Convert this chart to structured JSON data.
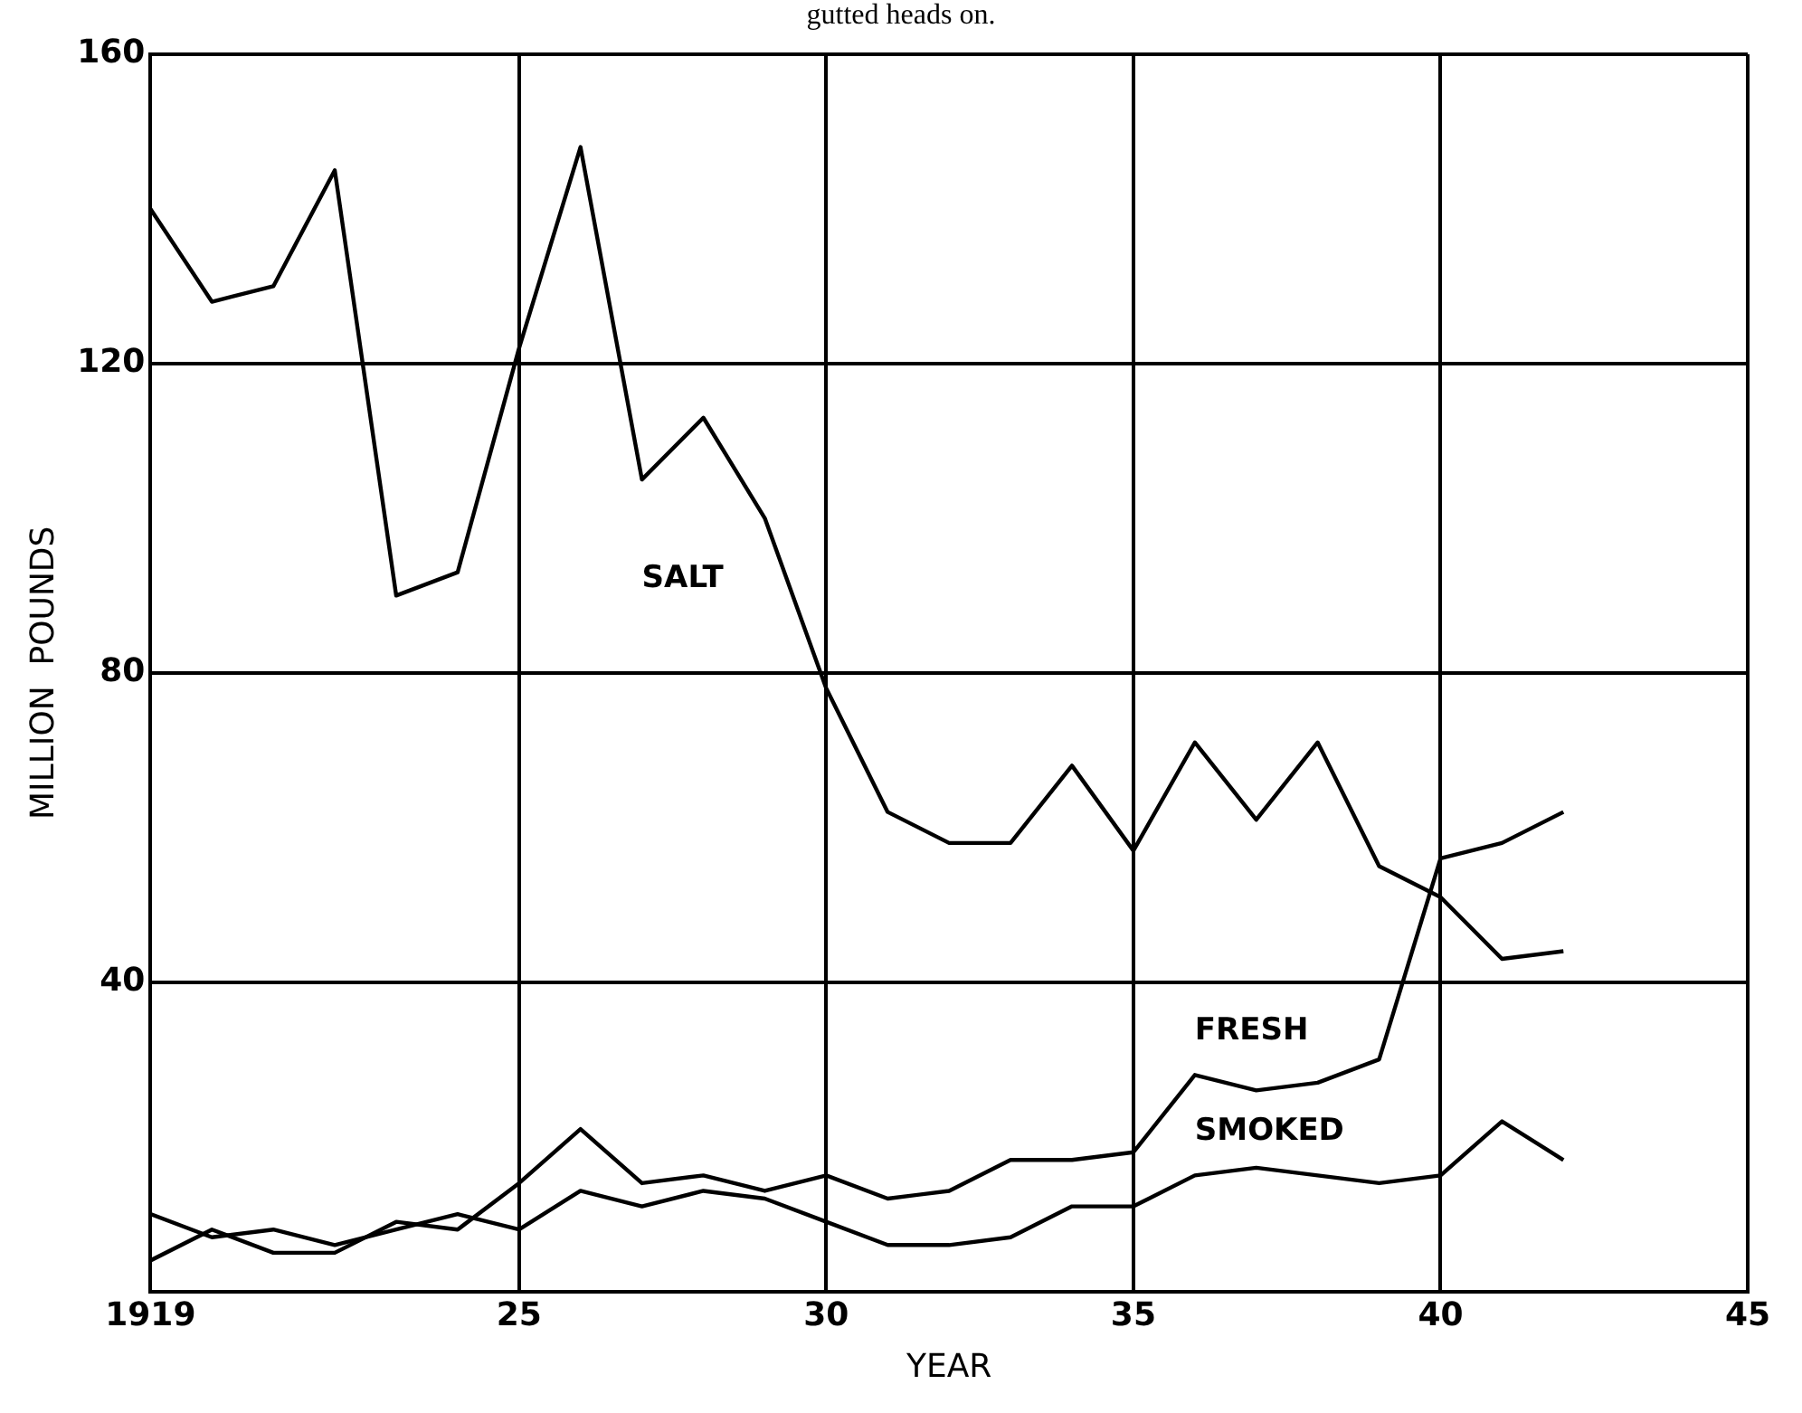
{
  "chart_data": {
    "type": "line",
    "xlabel": "YEAR",
    "ylabel": "MILLION  POUNDS",
    "annotations": [
      "gutted heads on."
    ],
    "x": [
      1919,
      1920,
      1921,
      1922,
      1923,
      1924,
      1925,
      1926,
      1927,
      1928,
      1929,
      1930,
      1931,
      1932,
      1933,
      1934,
      1935,
      1936,
      1937,
      1938,
      1939,
      1940,
      1941,
      1942
    ],
    "series": [
      {
        "name": "SALT",
        "color": "#000000",
        "values": [
          140,
          128,
          130,
          145,
          90,
          93,
          122,
          148,
          105,
          113,
          100,
          78,
          62,
          58,
          58,
          68,
          57,
          71,
          61,
          71,
          55,
          51,
          43,
          44
        ]
      },
      {
        "name": "FRESH",
        "color": "#000000",
        "values": [
          4,
          8,
          5,
          5,
          9,
          8,
          14,
          21,
          14,
          15,
          13,
          15,
          12,
          13,
          17,
          17,
          18,
          28,
          26,
          27,
          30,
          56,
          58,
          62
        ]
      },
      {
        "name": "SMOKED",
        "color": "#000000",
        "values": [
          10,
          7,
          8,
          6,
          8,
          10,
          8,
          13,
          11,
          13,
          12,
          9,
          6,
          6,
          7,
          11,
          11,
          15,
          16,
          15,
          14,
          15,
          22,
          17
        ]
      }
    ],
    "xlim": [
      1919,
      1945
    ],
    "xticks": [
      1919,
      {
        "value": 1925,
        "label": "25"
      },
      {
        "value": 1930,
        "label": "30"
      },
      {
        "value": 1935,
        "label": "35"
      },
      {
        "value": 1940,
        "label": "40"
      },
      {
        "value": 1945,
        "label": "45"
      }
    ],
    "ylim": [
      0,
      160
    ],
    "yticks": [
      {
        "value": 0,
        "label": null
      },
      40,
      80,
      120,
      160
    ],
    "grid": true,
    "legend": false,
    "marker": "none",
    "line_style": "solid"
  }
}
